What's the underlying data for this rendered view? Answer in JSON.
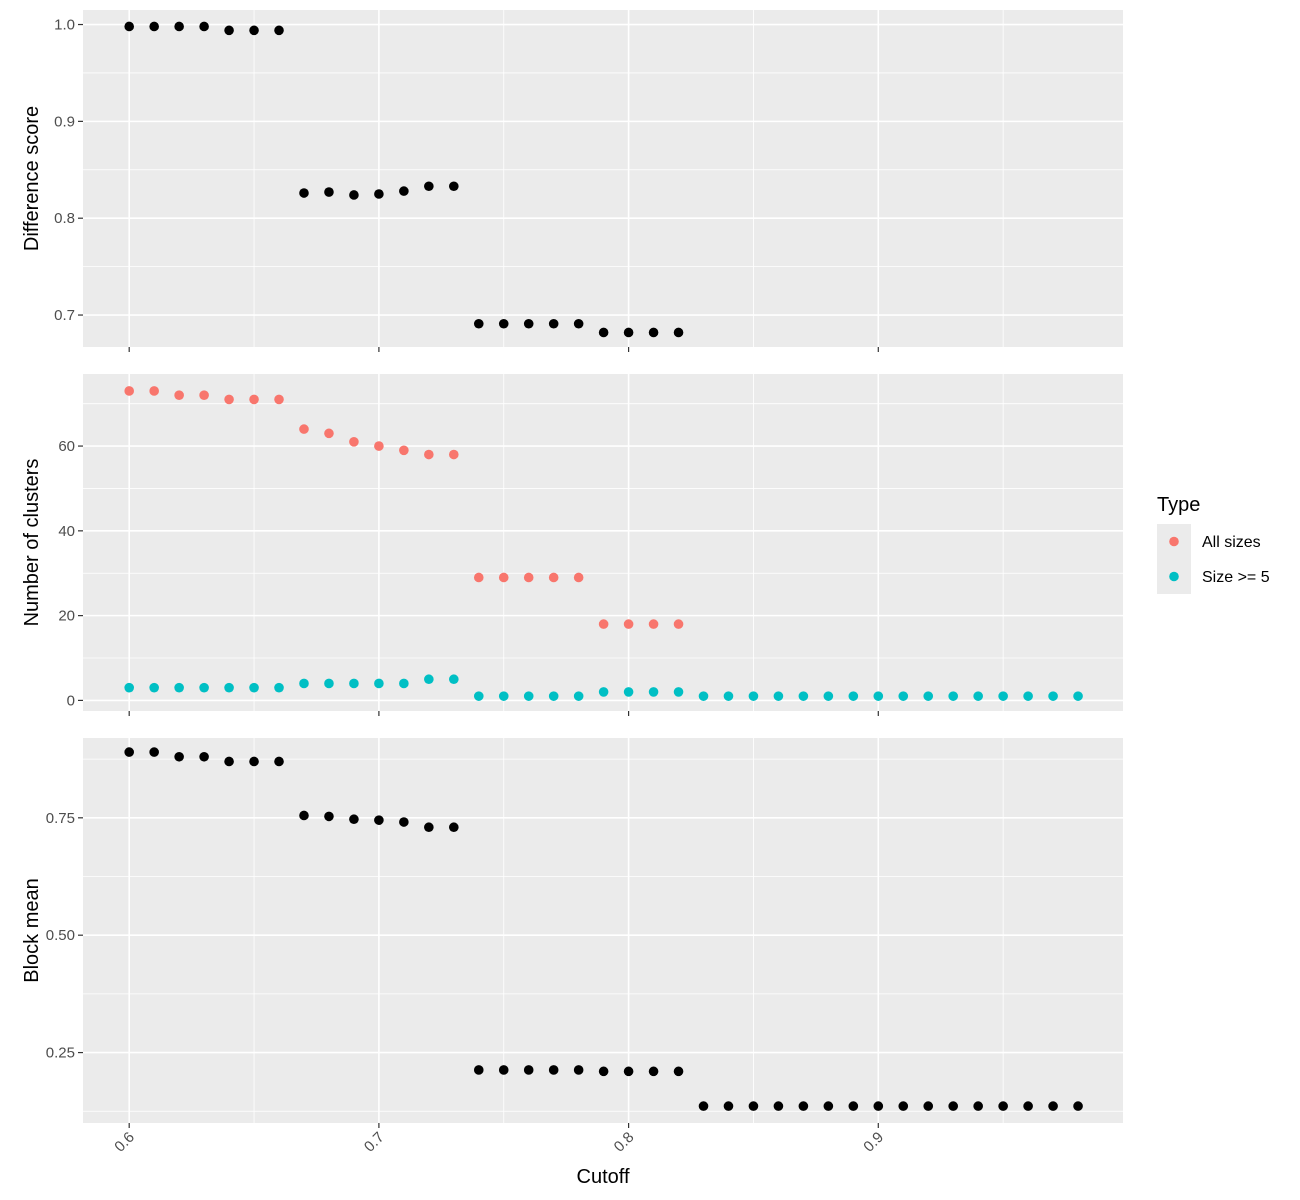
{
  "chart_data": {
    "type": "scatter",
    "x_label": "Cutoff",
    "x_range": [
      0.5815,
      0.998
    ],
    "x_ticks": [
      0.6,
      0.7,
      0.8,
      0.9
    ],
    "x_tick_labels": [
      "0.6",
      "0.7",
      "0.8",
      "0.9"
    ],
    "x": [
      0.6,
      0.61,
      0.62,
      0.63,
      0.64,
      0.65,
      0.66,
      0.67,
      0.68,
      0.69,
      0.7,
      0.71,
      0.72,
      0.73,
      0.74,
      0.75,
      0.76,
      0.77,
      0.78,
      0.79,
      0.8,
      0.81,
      0.82,
      0.83,
      0.84,
      0.85,
      0.86,
      0.87,
      0.88,
      0.89,
      0.9,
      0.91,
      0.92,
      0.93,
      0.94,
      0.95,
      0.96,
      0.97,
      0.98
    ],
    "legend": {
      "title": "Type",
      "placement": "right",
      "entries": [
        {
          "label": "All sizes",
          "color": "#F8766D"
        },
        {
          "label": "Size >= 5",
          "color": "#00BFC4"
        }
      ]
    },
    "panels": [
      {
        "y_label": "Difference score",
        "y_range": [
          0.667,
          1.015
        ],
        "y_ticks": [
          0.7,
          0.8,
          0.9,
          1.0
        ],
        "y_tick_labels": [
          "0.7",
          "0.8",
          "0.9",
          "1.0"
        ],
        "series": [
          {
            "color": "#000000",
            "y": [
              0.998,
              0.998,
              0.998,
              0.998,
              0.994,
              0.994,
              0.994,
              0.826,
              0.827,
              0.824,
              0.825,
              0.828,
              0.833,
              0.833,
              0.691,
              0.691,
              0.691,
              0.691,
              0.691,
              0.682,
              0.682,
              0.682,
              0.682
            ]
          }
        ]
      },
      {
        "y_label": "Number of clusters",
        "y_range": [
          -2.5,
          77
        ],
        "y_ticks": [
          0,
          20,
          40,
          60
        ],
        "y_tick_labels": [
          "0",
          "20",
          "40",
          "60"
        ],
        "series": [
          {
            "name": "All sizes",
            "color": "#F8766D",
            "y": [
              73,
              73,
              72,
              72,
              71,
              71,
              71,
              64,
              63,
              61,
              60,
              59,
              58,
              58,
              29,
              29,
              29,
              29,
              29,
              18,
              18,
              18,
              18
            ]
          },
          {
            "name": "Size >= 5",
            "color": "#00BFC4",
            "y": [
              3,
              3,
              3,
              3,
              3,
              3,
              3,
              4,
              4,
              4,
              4,
              4,
              5,
              5,
              1,
              1,
              1,
              1,
              1,
              2,
              2,
              2,
              2,
              1,
              1,
              1,
              1,
              1,
              1,
              1,
              1,
              1,
              1,
              1,
              1,
              1,
              1,
              1,
              1
            ]
          }
        ]
      },
      {
        "y_label": "Block mean",
        "y_range": [
          0.1,
          0.92
        ],
        "y_ticks": [
          0.25,
          0.5,
          0.75
        ],
        "y_tick_labels": [
          "0.25",
          "0.50",
          "0.75"
        ],
        "series": [
          {
            "color": "#000000",
            "y": [
              0.89,
              0.89,
              0.88,
              0.88,
              0.87,
              0.87,
              0.87,
              0.755,
              0.753,
              0.747,
              0.745,
              0.741,
              0.73,
              0.73,
              0.213,
              0.213,
              0.213,
              0.213,
              0.213,
              0.21,
              0.21,
              0.21,
              0.21,
              0.136,
              0.136,
              0.136,
              0.136,
              0.136,
              0.136,
              0.136,
              0.136,
              0.136,
              0.136,
              0.136,
              0.136,
              0.136,
              0.136,
              0.136,
              0.136
            ]
          }
        ]
      }
    ]
  }
}
